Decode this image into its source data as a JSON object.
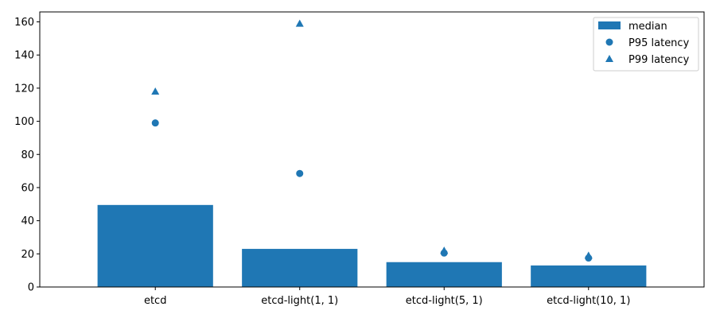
{
  "chart_data": {
    "type": "bar",
    "title": "",
    "xlabel": "",
    "ylabel": "",
    "categories": [
      "etcd",
      "etcd-light(1, 1)",
      "etcd-light(5, 1)",
      "etcd-light(10, 1)"
    ],
    "series": [
      {
        "name": "median",
        "kind": "bar",
        "marker": "bar",
        "values": [
          49.5,
          23,
          15,
          13
        ]
      },
      {
        "name": "P95 latency",
        "kind": "scatter",
        "marker": "circle",
        "values": [
          99,
          68.5,
          20.5,
          17.5
        ]
      },
      {
        "name": "P99 latency",
        "kind": "scatter",
        "marker": "triangle",
        "values": [
          118,
          159,
          22,
          19
        ]
      }
    ],
    "ylim": [
      0,
      166
    ],
    "yticks": [
      0,
      20,
      40,
      60,
      80,
      100,
      120,
      140,
      160
    ],
    "grid": false,
    "legend_position": "top-right",
    "color": "#1f77b4"
  }
}
